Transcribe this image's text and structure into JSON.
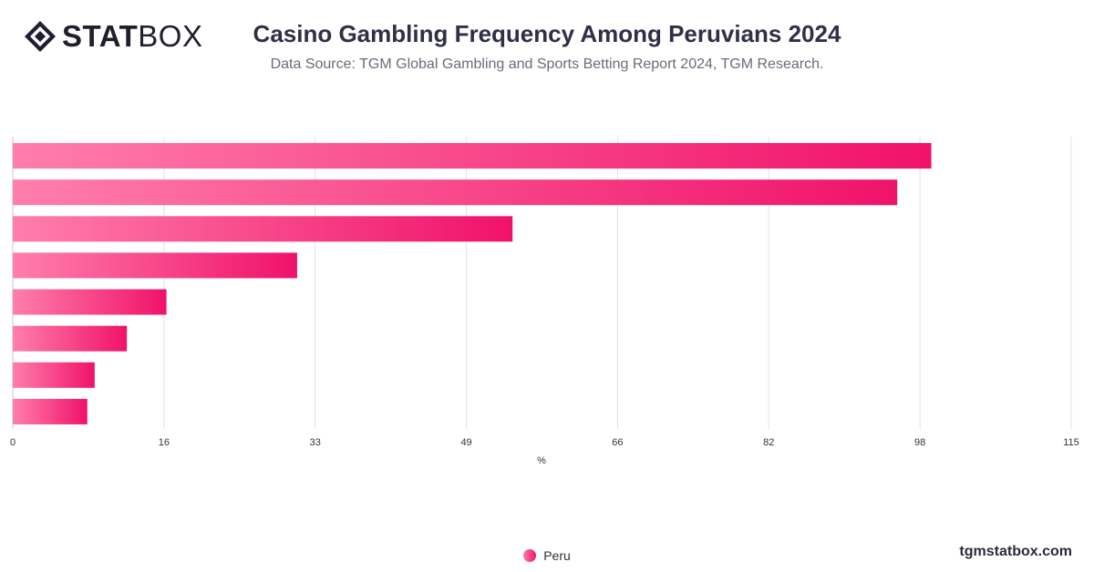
{
  "header": {
    "logo_bold": "STAT",
    "logo_light": "BOX",
    "title": "Casino Gambling Frequency Among Peruvians 2024",
    "subtitle": "Data Source: TGM Global Gambling and Sports Betting Report 2024, TGM Research."
  },
  "chart_data": {
    "type": "bar",
    "orientation": "horizontal",
    "xlabel": "%",
    "ylabel": "",
    "xlim": [
      0,
      115
    ],
    "x_ticks": [
      "0",
      "16",
      "33",
      "49",
      "66",
      "82",
      "98",
      "115"
    ],
    "categories": [
      "",
      "",
      "",
      "",
      "",
      "",
      "",
      ""
    ],
    "series": [
      {
        "name": "Peru",
        "values": [
          99.8,
          96.1,
          54.3,
          30.9,
          16.7,
          12.4,
          8.9,
          8.1
        ]
      }
    ],
    "grid": true,
    "legend_position": "bottom-center",
    "colors": {
      "bar_start": "#ff7eab",
      "bar_end": "#f0126a",
      "grid": "#e2e2e6",
      "axis_text": "#333333"
    }
  },
  "legend": {
    "label": "Peru"
  },
  "footer": {
    "watermark": "tgmstatbox.com"
  }
}
